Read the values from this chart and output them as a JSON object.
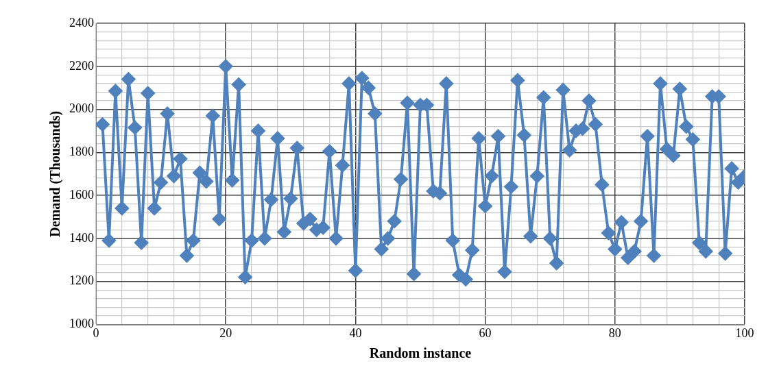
{
  "chart_data": {
    "type": "line",
    "xlabel": "Random instance",
    "ylabel": "Demand (Thousands)",
    "x": [
      1,
      2,
      3,
      4,
      5,
      6,
      7,
      8,
      9,
      10,
      11,
      12,
      13,
      14,
      15,
      16,
      17,
      18,
      19,
      20,
      21,
      22,
      23,
      24,
      25,
      26,
      27,
      28,
      29,
      30,
      31,
      32,
      33,
      34,
      35,
      36,
      37,
      38,
      39,
      40,
      41,
      42,
      43,
      44,
      45,
      46,
      47,
      48,
      49,
      50,
      51,
      52,
      53,
      54,
      55,
      56,
      57,
      58,
      59,
      60,
      61,
      62,
      63,
      64,
      65,
      66,
      67,
      68,
      69,
      70,
      71,
      72,
      73,
      74,
      75,
      76,
      77,
      78,
      79,
      80,
      81,
      82,
      83,
      84,
      85,
      86,
      87,
      88,
      89,
      90,
      91,
      92,
      93,
      94,
      95,
      96,
      97,
      98,
      99,
      100
    ],
    "series": [
      {
        "color": "#4f81bd",
        "values": [
          1930,
          1390,
          2085,
          1540,
          2140,
          1915,
          1380,
          2075,
          1540,
          1660,
          1980,
          1690,
          1770,
          1320,
          1390,
          1705,
          1665,
          1970,
          1490,
          2200,
          1670,
          2115,
          1220,
          1390,
          1900,
          1400,
          1580,
          1865,
          1430,
          1585,
          1820,
          1470,
          1490,
          1440,
          1450,
          1805,
          1400,
          1740,
          2120,
          1250,
          2145,
          2100,
          1980,
          1350,
          1400,
          1480,
          1675,
          2030,
          1235,
          2020,
          2020,
          1620,
          1610,
          2120,
          1390,
          1230,
          1210,
          1345,
          1865,
          1550,
          1690,
          1875,
          1245,
          1640,
          2135,
          1880,
          1410,
          1690,
          2055,
          1400,
          1285,
          2090,
          1810,
          1900,
          1910,
          2040,
          1930,
          1650,
          1425,
          1350,
          1475,
          1310,
          1340,
          1480,
          1875,
          1320,
          2120,
          1815,
          1785,
          2095,
          1920,
          1860,
          1380,
          1340,
          2060,
          2060,
          1330,
          1725,
          1660,
          1690
        ]
      }
    ],
    "xlim": [
      0,
      100
    ],
    "xticks": [
      0,
      {
        "value": 4,
        "label": null
      },
      {
        "value": 8,
        "label": null
      },
      {
        "value": 12,
        "label": null
      },
      {
        "value": 16,
        "label": null
      },
      20,
      {
        "value": 24,
        "label": null
      },
      {
        "value": 28,
        "label": null
      },
      {
        "value": 32,
        "label": null
      },
      {
        "value": 36,
        "label": null
      },
      40,
      {
        "value": 44,
        "label": null
      },
      {
        "value": 48,
        "label": null
      },
      {
        "value": 52,
        "label": null
      },
      {
        "value": 56,
        "label": null
      },
      60,
      {
        "value": 64,
        "label": null
      },
      {
        "value": 68,
        "label": null
      },
      {
        "value": 72,
        "label": null
      },
      {
        "value": 76,
        "label": null
      },
      80,
      {
        "value": 84,
        "label": null
      },
      {
        "value": 88,
        "label": null
      },
      {
        "value": 92,
        "label": null
      },
      {
        "value": 96,
        "label": null
      },
      100
    ],
    "ylim": [
      1000,
      2400
    ],
    "yticks": [
      1000,
      {
        "value": 1040,
        "label": null
      },
      {
        "value": 1080,
        "label": null
      },
      {
        "value": 1120,
        "label": null
      },
      {
        "value": 1160,
        "label": null
      },
      1200,
      {
        "value": 1240,
        "label": null
      },
      {
        "value": 1280,
        "label": null
      },
      {
        "value": 1320,
        "label": null
      },
      {
        "value": 1360,
        "label": null
      },
      1400,
      {
        "value": 1440,
        "label": null
      },
      {
        "value": 1480,
        "label": null
      },
      {
        "value": 1520,
        "label": null
      },
      {
        "value": 1560,
        "label": null
      },
      1600,
      {
        "value": 1640,
        "label": null
      },
      {
        "value": 1680,
        "label": null
      },
      {
        "value": 1720,
        "label": null
      },
      {
        "value": 1760,
        "label": null
      },
      1800,
      {
        "value": 1840,
        "label": null
      },
      {
        "value": 1880,
        "label": null
      },
      {
        "value": 1920,
        "label": null
      },
      {
        "value": 1960,
        "label": null
      },
      2000,
      {
        "value": 2040,
        "label": null
      },
      {
        "value": 2080,
        "label": null
      },
      {
        "value": 2120,
        "label": null
      },
      {
        "value": 2160,
        "label": null
      },
      2200,
      {
        "value": 2240,
        "label": null
      },
      {
        "value": 2280,
        "label": null
      },
      {
        "value": 2320,
        "label": null
      },
      {
        "value": 2360,
        "label": null
      },
      2400
    ],
    "grid": true,
    "legend": false,
    "marker": "diamond",
    "line_style": "solid"
  }
}
